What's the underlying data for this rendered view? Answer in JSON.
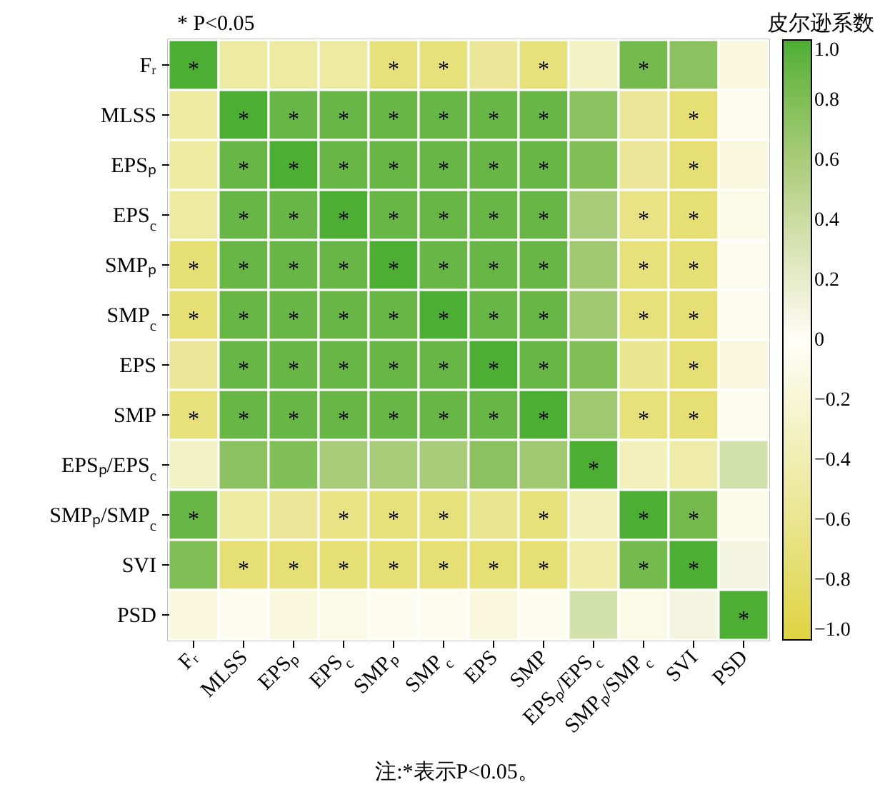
{
  "chart_data": {
    "type": "heatmap",
    "title": "* P<0.05",
    "clabel": "皮尔逊系数",
    "annotations": [
      "注:*表示P<0.05。"
    ],
    "categories": [
      "Fᵣ",
      "MLSS",
      "EPSₚ",
      "EPS$_{c}$",
      "SMPₚ",
      "SMP$_{c}$",
      "EPS",
      "SMP",
      "EPSₚ/EPS$_{c}$",
      "SMPₚ/SMP$_{c}$",
      "SVI",
      "PSD"
    ],
    "y_categories": [
      "Fᵣ",
      "MLSS",
      "EPSₚ",
      "EPS$_{c}$",
      "SMPₚ",
      "SMP$_{c}$",
      "EPS",
      "SMP",
      "EPSₚ/EPS$_{c}$",
      "SMPₚ/SMP$_{c}$",
      "SVI",
      "PSD"
    ],
    "cells": [
      [
        1,
        -0.5,
        -0.5,
        -0.5,
        -0.7,
        -0.7,
        -0.55,
        -0.7,
        -0.3,
        0.85,
        0.75,
        -0.15
      ],
      [
        -0.5,
        1,
        0.9,
        0.9,
        0.9,
        0.9,
        0.9,
        0.9,
        0.75,
        -0.55,
        -0.75,
        -0.05
      ],
      [
        -0.5,
        0.9,
        1,
        0.9,
        0.9,
        0.9,
        0.9,
        0.9,
        0.8,
        -0.55,
        -0.75,
        -0.15
      ],
      [
        -0.5,
        0.9,
        0.9,
        1,
        0.9,
        0.9,
        0.9,
        0.9,
        0.6,
        -0.65,
        -0.75,
        -0.1
      ],
      [
        -0.75,
        0.9,
        0.9,
        0.9,
        1,
        0.9,
        0.9,
        0.9,
        0.65,
        -0.7,
        -0.75,
        -0.05
      ],
      [
        -0.75,
        0.9,
        0.9,
        0.9,
        0.9,
        1,
        0.9,
        0.9,
        0.65,
        -0.7,
        -0.75,
        -0.05
      ],
      [
        -0.55,
        0.9,
        0.9,
        0.9,
        0.9,
        0.9,
        1,
        0.9,
        0.8,
        -0.6,
        -0.75,
        -0.15
      ],
      [
        -0.7,
        0.9,
        0.9,
        0.9,
        0.9,
        0.9,
        0.9,
        1,
        0.65,
        -0.7,
        -0.75,
        -0.05
      ],
      [
        -0.3,
        0.75,
        0.8,
        0.6,
        0.6,
        0.6,
        0.75,
        0.65,
        1,
        -0.35,
        -0.45,
        0.35
      ],
      [
        0.9,
        -0.5,
        -0.55,
        -0.65,
        -0.7,
        -0.7,
        -0.6,
        -0.7,
        -0.35,
        1,
        0.85,
        -0.1
      ],
      [
        0.8,
        -0.75,
        -0.75,
        -0.75,
        -0.75,
        -0.75,
        -0.75,
        -0.75,
        -0.45,
        0.85,
        1,
        0.1
      ],
      [
        -0.15,
        -0.05,
        -0.15,
        -0.1,
        -0.05,
        -0.05,
        -0.15,
        -0.05,
        0.35,
        -0.1,
        0.1,
        1
      ]
    ],
    "cell_labels": [
      [
        "*",
        null,
        null,
        null,
        "*",
        "*",
        null,
        "*",
        null,
        "*",
        null,
        null
      ],
      [
        null,
        "*",
        "*",
        "*",
        "*",
        "*",
        "*",
        "*",
        null,
        null,
        "*",
        null
      ],
      [
        null,
        "*",
        "*",
        "*",
        "*",
        "*",
        "*",
        "*",
        null,
        null,
        "*",
        null
      ],
      [
        null,
        "*",
        "*",
        "*",
        "*",
        "*",
        "*",
        "*",
        null,
        "*",
        "*",
        null
      ],
      [
        "*",
        "*",
        "*",
        "*",
        "*",
        "*",
        "*",
        "*",
        null,
        "*",
        "*",
        null
      ],
      [
        "*",
        "*",
        "*",
        "*",
        "*",
        "*",
        "*",
        "*",
        null,
        "*",
        "*",
        null
      ],
      [
        null,
        "*",
        "*",
        "*",
        "*",
        "*",
        "*",
        "*",
        null,
        null,
        "*",
        null
      ],
      [
        "*",
        "*",
        "*",
        "*",
        "*",
        "*",
        "*",
        "*",
        null,
        "*",
        "*",
        null
      ],
      [
        null,
        null,
        null,
        null,
        null,
        null,
        null,
        null,
        "*",
        null,
        null,
        null
      ],
      [
        "*",
        null,
        null,
        "*",
        "*",
        "*",
        null,
        "*",
        null,
        "*",
        "*",
        null
      ],
      [
        null,
        "*",
        "*",
        "*",
        "*",
        "*",
        "*",
        "*",
        null,
        "*",
        "*",
        null
      ],
      [
        null,
        null,
        null,
        null,
        null,
        null,
        null,
        null,
        null,
        null,
        null,
        "*"
      ]
    ],
    "clim": [
      -1,
      1
    ],
    "cticks": [
      {
        "value": -1,
        "label": "−1.0"
      },
      {
        "value": -0.8,
        "label": "−0.8"
      },
      {
        "value": -0.6,
        "label": "−0.6"
      },
      {
        "value": -0.4,
        "label": "−0.4"
      },
      {
        "value": -0.2,
        "label": "−0.2"
      },
      0,
      0.2,
      0.4,
      0.6,
      0.8,
      {
        "value": 1,
        "label": "1.0"
      }
    ]
  }
}
